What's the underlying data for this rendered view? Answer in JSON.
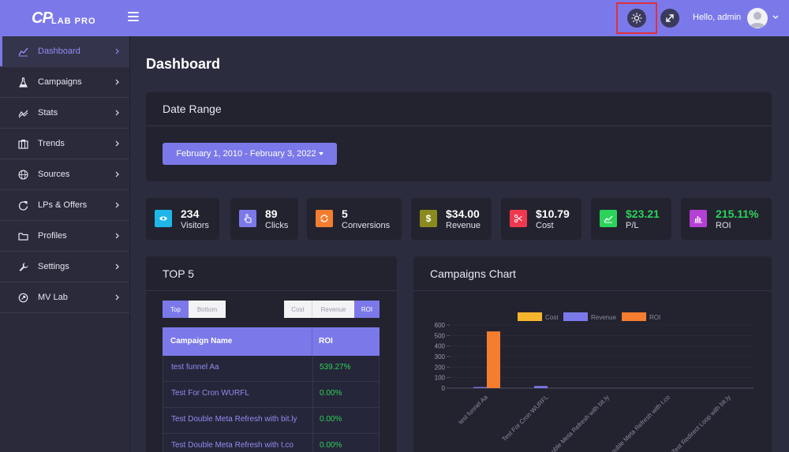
{
  "header": {
    "logo_cp": "CP",
    "logo_text": "LAB PRO",
    "greeting": "Hello, admin"
  },
  "sidebar": {
    "items": [
      {
        "label": "Dashboard",
        "icon": "line-chart-icon",
        "active": true
      },
      {
        "label": "Campaigns",
        "icon": "flask-icon"
      },
      {
        "label": "Stats",
        "icon": "trend-icon"
      },
      {
        "label": "Trends",
        "icon": "columns-icon"
      },
      {
        "label": "Sources",
        "icon": "globe-icon"
      },
      {
        "label": "LPs & Offers",
        "icon": "refresh-icon"
      },
      {
        "label": "Profiles",
        "icon": "folder-icon"
      },
      {
        "label": "Settings",
        "icon": "wrench-icon"
      },
      {
        "label": "MV Lab",
        "icon": "rocket-icon"
      }
    ]
  },
  "main": {
    "page_title": "Dashboard",
    "date_range": {
      "title": "Date Range",
      "value": "February 1, 2010 - February 3, 2022"
    },
    "stats": [
      {
        "value": "234",
        "label": "Visitors",
        "icon": "eye-icon",
        "color": "#1fb6e8"
      },
      {
        "value": "89",
        "label": "Clicks",
        "icon": "pointer-icon",
        "color": "#7b79e9"
      },
      {
        "value": "5",
        "label": "Conversions",
        "icon": "sync-icon",
        "color": "#f47d2f"
      },
      {
        "value": "$34.00",
        "label": "Revenue",
        "icon": "dollar-icon",
        "color": "#8a8a1f"
      },
      {
        "value": "$10.79",
        "label": "Cost",
        "icon": "scissors-icon",
        "color": "#f0384e"
      },
      {
        "value": "$23.21",
        "label": "P/L",
        "icon": "area-chart-icon",
        "color": "#2bd35a"
      },
      {
        "value": "215.11%",
        "label": "ROI",
        "icon": "bar-chart-icon",
        "color": "#b540d6"
      }
    ],
    "top5": {
      "title": "TOP 5",
      "toggle_top": "Top",
      "toggle_bottom": "Bottom",
      "metric_cost": "Cost",
      "metric_revenue": "Revenue",
      "metric_roi": "ROI",
      "col_name": "Campaign Name",
      "col_roi": "ROI",
      "rows": [
        {
          "name": "test funnel Aa",
          "roi": "539.27%"
        },
        {
          "name": "Test For Cron WURFL",
          "roi": "0.00%"
        },
        {
          "name": "Test Double Meta Refresh with bit.ly",
          "roi": "0.00%"
        },
        {
          "name": "Test Double Meta Refresh with t.co",
          "roi": "0.00%"
        }
      ]
    },
    "campaigns_chart": {
      "title": "Campaigns Chart"
    }
  },
  "chart_data": {
    "type": "bar",
    "categories": [
      "test funnel Aa",
      "Test For Cron WURFL",
      "Test Double Meta Refresh with bit.ly",
      "Test Double Meta Refresh with t.co",
      "Test Redirect Loop with bit.ly"
    ],
    "series": [
      {
        "name": "Cost",
        "color": "#f5b62e",
        "values": [
          0,
          0,
          0,
          0,
          0
        ]
      },
      {
        "name": "Revenue",
        "color": "#7b79e9",
        "values": [
          10,
          20,
          0,
          0,
          0
        ]
      },
      {
        "name": "ROI",
        "color": "#f47d2f",
        "values": [
          539,
          0,
          0,
          0,
          0
        ]
      }
    ],
    "ylim": [
      0,
      600
    ],
    "yticks": [
      "600",
      "500",
      "400",
      "300",
      "200",
      "100",
      "0"
    ],
    "legend_position": "top"
  }
}
